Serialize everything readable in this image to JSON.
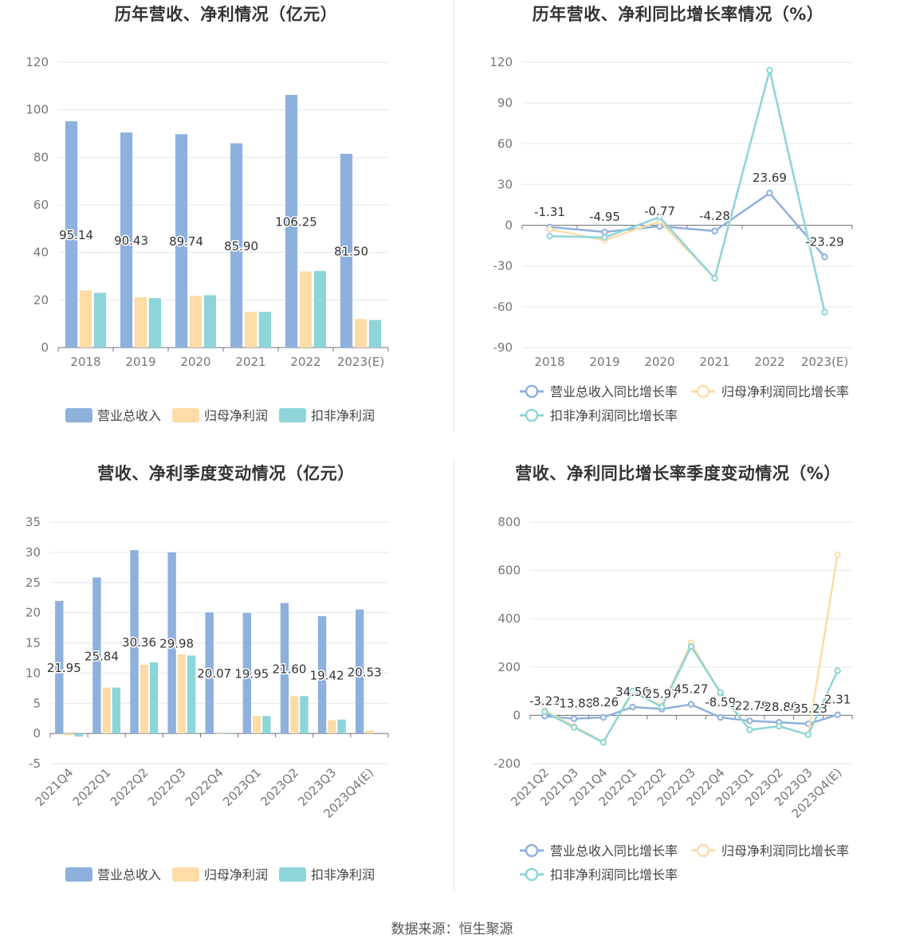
{
  "source": "数据来源：恒生聚源",
  "chart_data": [
    {
      "type": "bar",
      "title": "历年营收、净利情况（亿元）",
      "categories": [
        "2018",
        "2019",
        "2020",
        "2021",
        "2022",
        "2023(E)"
      ],
      "ylim": [
        0,
        120
      ],
      "yticks": [
        0,
        20,
        40,
        60,
        80,
        100,
        120
      ],
      "series": [
        {
          "name": "营业总收入",
          "values": [
            95.14,
            90.43,
            89.74,
            85.9,
            106.25,
            81.5
          ],
          "color": "#8eb0dd",
          "label_values": true
        },
        {
          "name": "归母净利润",
          "values": [
            24.0,
            21.2,
            21.8,
            15.0,
            32.0,
            12.0
          ],
          "color": "#fddca8"
        },
        {
          "name": "扣非净利润",
          "values": [
            23.0,
            20.8,
            22.0,
            15.0,
            32.2,
            11.6
          ],
          "color": "#8dd5d9"
        }
      ],
      "legend": "bottom",
      "grid": true
    },
    {
      "type": "line",
      "title": "历年营收、净利同比增长率情况（%）",
      "categories": [
        "2018",
        "2019",
        "2020",
        "2021",
        "2022",
        "2023(E)"
      ],
      "ylim": [
        -90,
        120
      ],
      "yticks": [
        -90,
        -60,
        -30,
        0,
        30,
        60,
        90,
        120
      ],
      "series": [
        {
          "name": "营业总收入同比增长率",
          "values": [
            -1.31,
            -4.95,
            -0.77,
            -4.28,
            23.69,
            -23.29
          ],
          "color": "#8eb0dd",
          "label_values": true
        },
        {
          "name": "归母净利润同比增长率",
          "values": [
            -3,
            -11,
            3,
            -39,
            114,
            -64
          ],
          "color": "#fddca8"
        },
        {
          "name": "扣非净利润同比增长率",
          "values": [
            -8,
            -9,
            6,
            -39,
            114,
            -64
          ],
          "color": "#8dd5d9"
        }
      ],
      "legend": "bottom",
      "grid": true
    },
    {
      "type": "bar",
      "title": "营收、净利季度变动情况（亿元）",
      "categories": [
        "2021Q4",
        "2022Q1",
        "2022Q2",
        "2022Q3",
        "2022Q4",
        "2023Q1",
        "2023Q2",
        "2023Q3",
        "2023Q4(E)"
      ],
      "ylim": [
        -5,
        35
      ],
      "yticks": [
        -5,
        0,
        5,
        10,
        15,
        20,
        25,
        30,
        35
      ],
      "series": [
        {
          "name": "营业总收入",
          "values": [
            21.95,
            25.84,
            30.36,
            29.98,
            20.07,
            19.95,
            21.6,
            19.42,
            20.53
          ],
          "color": "#8eb0dd",
          "label_values": true
        },
        {
          "name": "归母净利润",
          "values": [
            -0.3,
            7.6,
            11.4,
            13.1,
            0,
            2.9,
            6.2,
            2.2,
            0.5
          ],
          "color": "#fddca8"
        },
        {
          "name": "扣非净利润",
          "values": [
            -0.5,
            7.6,
            11.8,
            12.9,
            0,
            2.9,
            6.2,
            2.3,
            null
          ],
          "color": "#8dd5d9"
        }
      ],
      "legend": "bottom",
      "grid": true
    },
    {
      "type": "line",
      "title": "营收、净利同比增长率季度变动情况（%）",
      "categories": [
        "2021Q2",
        "2021Q3",
        "2021Q4",
        "2022Q1",
        "2022Q2",
        "2022Q3",
        "2022Q4",
        "2023Q1",
        "2023Q2",
        "2023Q3",
        "2023Q4(E)"
      ],
      "ylim": [
        -200,
        800
      ],
      "yticks": [
        -200,
        0,
        200,
        400,
        600,
        800
      ],
      "series": [
        {
          "name": "营业总收入同比增长率",
          "values": [
            -3.22,
            -13.88,
            -8.26,
            34.56,
            25.97,
            45.27,
            -8.59,
            -22.79,
            -28.86,
            -35.23,
            2.31
          ],
          "color": "#8eb0dd",
          "label_values": true
        },
        {
          "name": "归母净利润同比增长率",
          "values": [
            20,
            -45,
            -110,
            95,
            40,
            300,
            90,
            -60,
            -45,
            -80,
            665
          ],
          "color": "#fddca8"
        },
        {
          "name": "扣非净利润同比增长率",
          "values": [
            15,
            -50,
            -112,
            100,
            35,
            285,
            95,
            -60,
            -45,
            -80,
            185
          ],
          "color": "#8dd5d9"
        }
      ],
      "legend": "bottom",
      "grid": true
    }
  ]
}
